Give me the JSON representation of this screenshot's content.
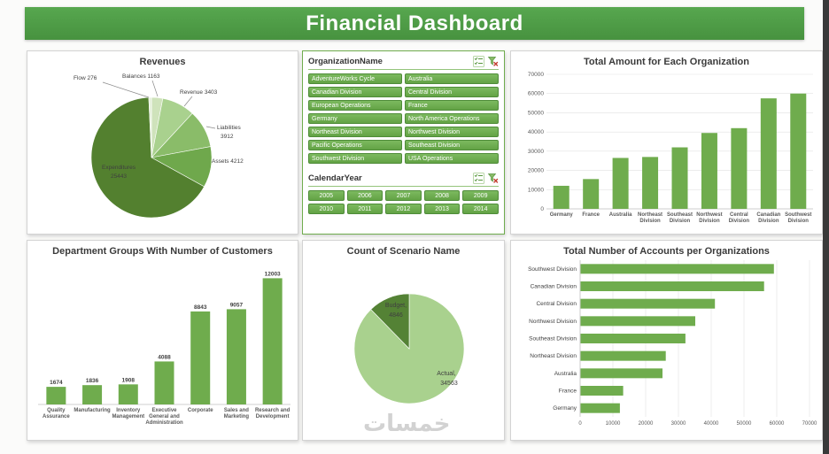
{
  "header": {
    "title": "Financial Dashboard"
  },
  "watermark": "خمسات",
  "colors": {
    "accent_green": "#4c9a44",
    "bar_green": "#6fac4d",
    "pie_dark": "#548235",
    "pie_light": "#a9d18e"
  },
  "slicers": {
    "organization": {
      "title": "OrganizationName",
      "items": [
        "AdventureWorks Cycle",
        "Australia",
        "Canadian Division",
        "Central Division",
        "European Operations",
        "France",
        "Germany",
        "North America Operations",
        "Northeast Division",
        "Northwest Division",
        "Pacific Operations",
        "Southeast Division",
        "Southwest Division",
        "USA Operations"
      ]
    },
    "calendar_year": {
      "title": "CalendarYear",
      "items": [
        "2005",
        "2006",
        "2007",
        "2008",
        "2009",
        "2010",
        "2011",
        "2012",
        "2013",
        "2014"
      ]
    }
  },
  "chart_data": [
    {
      "type": "pie",
      "title": "Revenues",
      "labels": [
        "Balances",
        "Revenue",
        "Liabilities",
        "Assets",
        "Expenditures",
        "Flow"
      ],
      "values": [
        1163,
        3403,
        3912,
        4212,
        25443,
        276
      ],
      "legend": "none"
    },
    {
      "type": "bar",
      "title": "Total Amount for Each Organization",
      "categories": [
        "Germany",
        "France",
        "Australia",
        "Northeast Division",
        "Southeast Division",
        "Northwest Division",
        "Central Division",
        "Canadian Division",
        "Southwest Division"
      ],
      "values": [
        12000,
        15500,
        26500,
        27000,
        32000,
        39500,
        42000,
        57500,
        60000
      ],
      "ylim": [
        0,
        70000
      ],
      "tick_step": 10000,
      "grid": true
    },
    {
      "type": "bar",
      "title": "Department Groups With Number of Customers",
      "categories": [
        "Quality Assurance",
        "Manufacturing",
        "Inventory Management",
        "Executive General and Administration",
        "Corporate",
        "Sales and Marketing",
        "Research and Development"
      ],
      "values": [
        1674,
        1836,
        1908,
        4088,
        8843,
        9057,
        12003
      ],
      "show_values": true,
      "grid": false
    },
    {
      "type": "pie",
      "title": "Count of Scenario Name",
      "labels": [
        "Actual",
        "Budget"
      ],
      "values": [
        34563,
        4846
      ],
      "legend": "none"
    },
    {
      "type": "bar-horizontal",
      "title": "Total Number of Accounts per Organizations",
      "categories": [
        "Southwest Division",
        "Canadian Division",
        "Central Division",
        "Northwest Division",
        "Southeast Division",
        "Northeast Division",
        "Australia",
        "France",
        "Germany"
      ],
      "values": [
        59000,
        56000,
        41000,
        35000,
        32000,
        26000,
        25000,
        13000,
        12000
      ],
      "xlim": [
        0,
        70000
      ],
      "tick_step": 10000,
      "grid": true
    }
  ]
}
